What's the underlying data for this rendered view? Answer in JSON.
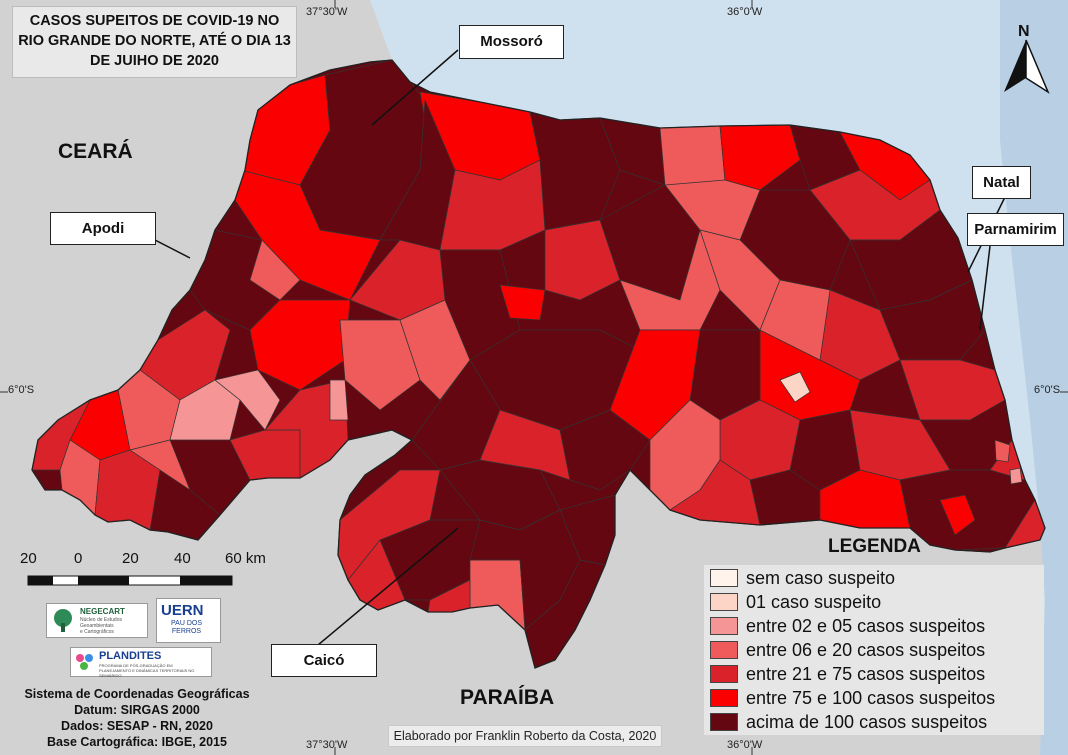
{
  "title": {
    "lines": [
      "CASOS SUPEITOS DE COVID-19 NO",
      "RIO GRANDE DO NORTE, ATÉ O DIA 13",
      "DE JUIHO DE 2020"
    ]
  },
  "coordinates": {
    "lon_w1": "37°30'W",
    "lon_w2": "36°0'W",
    "lat_s": "6°0'S"
  },
  "north_arrow": {
    "label": "N"
  },
  "neighbor_states": {
    "north_west": "CEARÁ",
    "south": "PARAÍBA"
  },
  "cities": [
    "Mossoró",
    "Apodi",
    "Natal",
    "Parnamirim",
    "Caicó"
  ],
  "legend": {
    "title": "LEGENDA",
    "classes": [
      {
        "label": "sem caso suspeito",
        "color": "#fff3ec"
      },
      {
        "label": "01 caso suspeito",
        "color": "#fdd5c6"
      },
      {
        "label": "entre 02 e 05 casos suspeitos",
        "color": "#f69595"
      },
      {
        "label": "entre 06 e 20 casos suspeitos",
        "color": "#ef5a5a"
      },
      {
        "label": "entre 21 e 75 casos suspeitos",
        "color": "#d9222a"
      },
      {
        "label": "entre 75 e 100 casos suspeitos",
        "color": "#fa0000"
      },
      {
        "label": "acima de 100 casos suspeitos",
        "color": "#640710"
      }
    ]
  },
  "scale_bar": {
    "labels": [
      "20",
      "0",
      "20",
      "40",
      "60 km"
    ]
  },
  "logos": {
    "negecart": [
      "NEGECART",
      "Núcleo de Estudos",
      "Geoambientais",
      "e Cartográficos"
    ],
    "uern": [
      "UERN",
      "PAU DOS",
      "FERROS"
    ],
    "plandites": [
      "PLANDITES",
      "PROGRAMA DE PÓS-GRADUAÇÃO EM",
      "PLANEJAMENTO E DINÂMICAS TERRITORIAIS NO SEMIÁRIDO"
    ]
  },
  "metadata": [
    "Sistema de Coordenadas Geográficas",
    "Datum: SIRGAS 2000",
    "Dados: SESAP - RN, 2020",
    "Base Cartográfica: IBGE, 2015"
  ],
  "credit": "Elaborado por Franklin Roberto da Costa, 2020"
}
